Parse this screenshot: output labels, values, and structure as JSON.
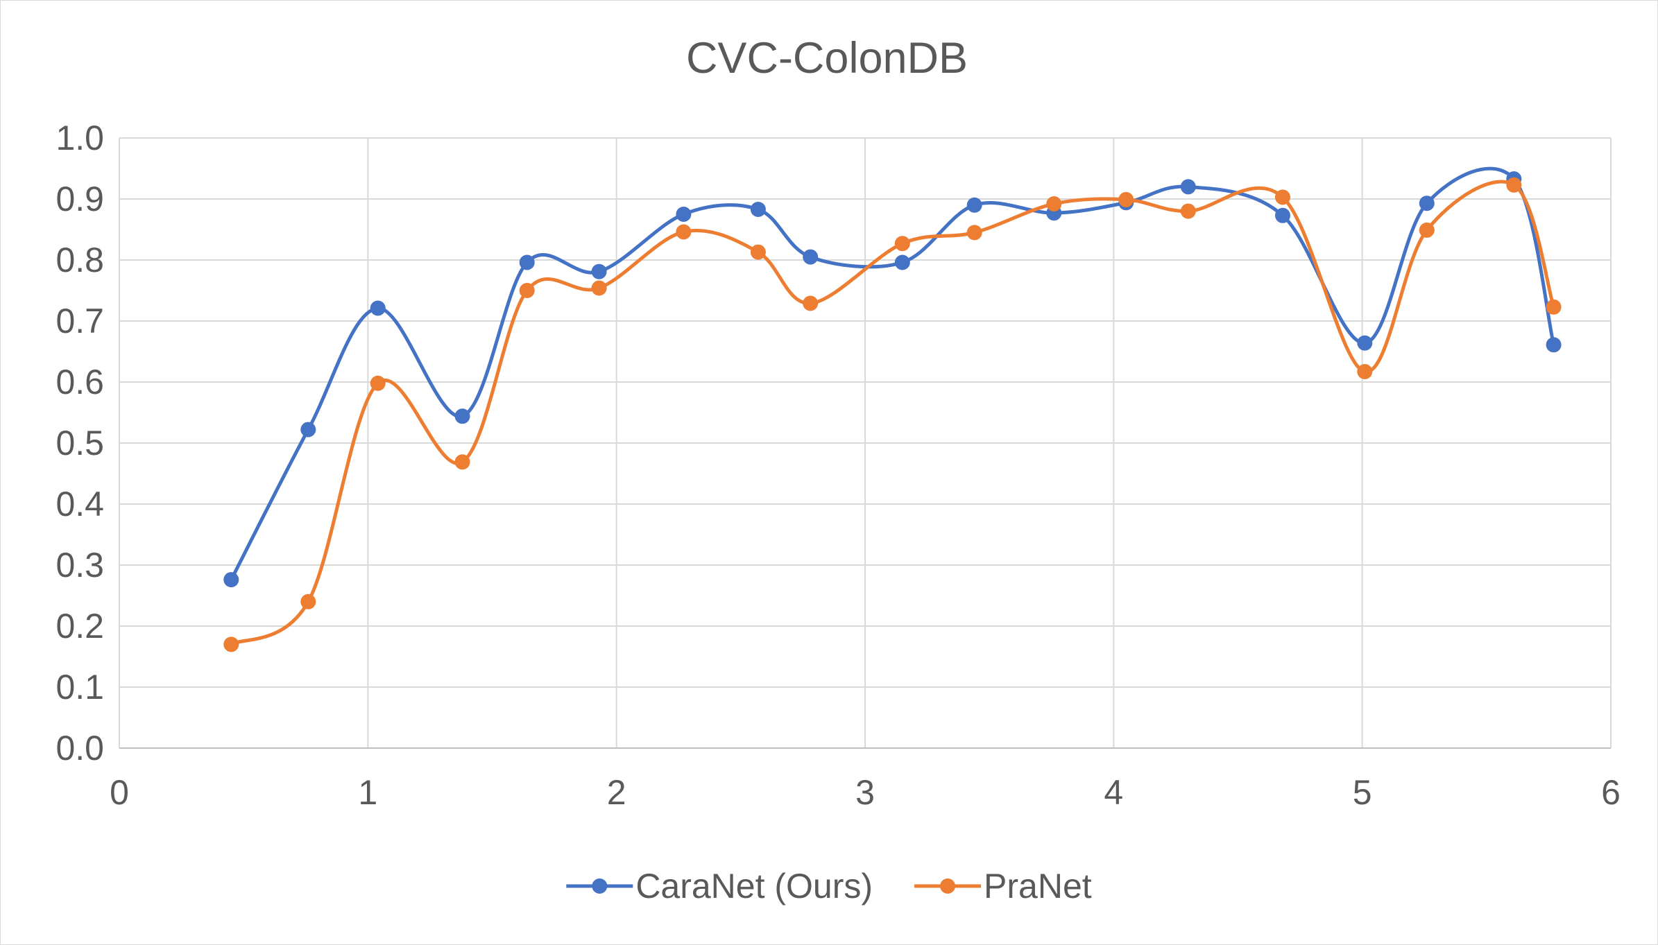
{
  "chart_data": {
    "type": "line",
    "title": "CVC-ColonDB",
    "xlabel": "",
    "ylabel": "",
    "xlim": [
      0,
      6
    ],
    "ylim": [
      0.0,
      1.0
    ],
    "x_ticks": [
      "0",
      "1",
      "2",
      "3",
      "4",
      "5",
      "6"
    ],
    "y_ticks": [
      "0.0",
      "0.1",
      "0.2",
      "0.3",
      "0.4",
      "0.5",
      "0.6",
      "0.7",
      "0.8",
      "0.9",
      "1.0"
    ],
    "grid": true,
    "legend_position": "bottom",
    "smooth": true,
    "series": [
      {
        "name": "CaraNet (Ours)",
        "color": "#4472C4",
        "points": [
          [
            0.45,
            0.276
          ],
          [
            0.76,
            0.522
          ],
          [
            1.04,
            0.721
          ],
          [
            1.38,
            0.544
          ],
          [
            1.64,
            0.796
          ],
          [
            1.93,
            0.781
          ],
          [
            2.27,
            0.875
          ],
          [
            2.57,
            0.883
          ],
          [
            2.78,
            0.805
          ],
          [
            3.15,
            0.796
          ],
          [
            3.44,
            0.89
          ],
          [
            3.76,
            0.877
          ],
          [
            4.05,
            0.894
          ],
          [
            4.3,
            0.92
          ],
          [
            4.68,
            0.873
          ],
          [
            5.01,
            0.664
          ],
          [
            5.26,
            0.893
          ],
          [
            5.61,
            0.933
          ],
          [
            5.77,
            0.661
          ]
        ]
      },
      {
        "name": "PraNet",
        "color": "#ED7D31",
        "points": [
          [
            0.45,
            0.17
          ],
          [
            0.76,
            0.24
          ],
          [
            1.04,
            0.598
          ],
          [
            1.38,
            0.469
          ],
          [
            1.64,
            0.75
          ],
          [
            1.93,
            0.754
          ],
          [
            2.27,
            0.846
          ],
          [
            2.57,
            0.813
          ],
          [
            2.78,
            0.729
          ],
          [
            3.15,
            0.827
          ],
          [
            3.44,
            0.845
          ],
          [
            3.76,
            0.892
          ],
          [
            4.05,
            0.899
          ],
          [
            4.3,
            0.88
          ],
          [
            4.68,
            0.903
          ],
          [
            5.01,
            0.617
          ],
          [
            5.26,
            0.849
          ],
          [
            5.61,
            0.923
          ],
          [
            5.77,
            0.723
          ]
        ]
      }
    ]
  }
}
